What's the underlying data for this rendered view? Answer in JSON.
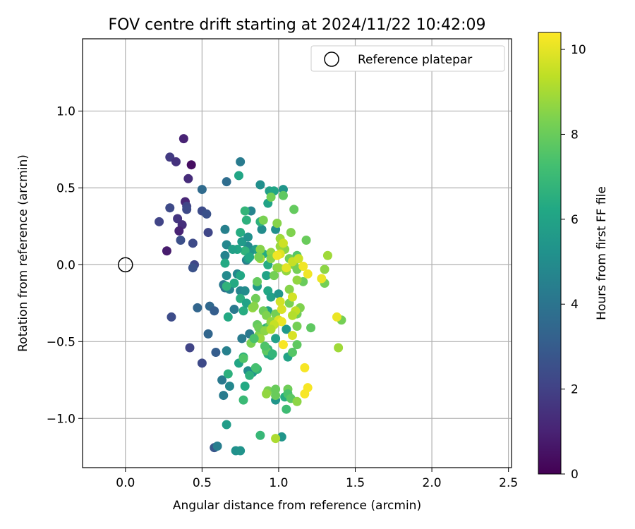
{
  "chart_data": {
    "type": "scatter",
    "title": "FOV centre drift starting at 2024/11/22 10:42:09",
    "xlabel": "Angular distance from reference (arcmin)",
    "ylabel": "Rotation from reference (arcmin)",
    "xlim": [
      -0.28,
      2.52
    ],
    "ylim": [
      -1.32,
      1.47
    ],
    "xticks": [
      0.0,
      0.5,
      1.0,
      1.5,
      2.0,
      2.5
    ],
    "xtick_labels": [
      "0.0",
      "0.5",
      "1.0",
      "1.5",
      "2.0",
      "2.5"
    ],
    "yticks": [
      -1.0,
      -0.5,
      0.0,
      0.5,
      1.0
    ],
    "ytick_labels": [
      "−1.0",
      "−0.5",
      "0.0",
      "0.5",
      "1.0"
    ],
    "grid": true,
    "legend": {
      "position": "top-right",
      "entries": [
        "Reference platepar"
      ]
    },
    "reference": {
      "label": "Reference platepar",
      "x": 0.0,
      "y": 0.0
    },
    "colorbar": {
      "label": "Hours from first FF file",
      "min": 0,
      "max": 10.4,
      "ticks": [
        0,
        2,
        4,
        6,
        8,
        10
      ],
      "tick_labels": [
        "0",
        "2",
        "4",
        "6",
        "8",
        "10"
      ],
      "colormap": "viridis"
    },
    "series": [
      {
        "fields": [
          "x",
          "y",
          "hours"
        ],
        "points": [
          [
            0.38,
            0.82,
            1.0
          ],
          [
            0.29,
            0.7,
            1.8
          ],
          [
            0.33,
            0.67,
            1.5
          ],
          [
            0.43,
            0.65,
            0.4
          ],
          [
            0.41,
            0.56,
            1.3
          ],
          [
            0.39,
            0.41,
            1.1
          ],
          [
            0.4,
            0.38,
            2.1
          ],
          [
            0.29,
            0.37,
            2.3
          ],
          [
            0.4,
            0.36,
            2.3
          ],
          [
            0.5,
            0.35,
            2.4
          ],
          [
            0.53,
            0.33,
            2.6
          ],
          [
            0.34,
            0.3,
            1.6
          ],
          [
            0.22,
            0.28,
            2.1
          ],
          [
            0.37,
            0.26,
            1.4
          ],
          [
            0.35,
            0.22,
            1.0
          ],
          [
            0.54,
            0.21,
            2.2
          ],
          [
            0.36,
            0.16,
            2.5
          ],
          [
            0.44,
            0.14,
            2.3
          ],
          [
            0.27,
            0.09,
            0.8
          ],
          [
            0.45,
            0.0,
            2.2
          ],
          [
            0.44,
            -0.02,
            2.6
          ],
          [
            0.3,
            -0.34,
            2.4
          ],
          [
            0.42,
            -0.54,
            2.1
          ],
          [
            0.5,
            -0.64,
            2.3
          ],
          [
            0.58,
            -1.19,
            2.8
          ],
          [
            0.59,
            -0.57,
            3.1
          ],
          [
            0.54,
            -0.45,
            3.4
          ],
          [
            0.47,
            -0.28,
            3.4
          ],
          [
            0.55,
            -0.27,
            3.5
          ],
          [
            0.58,
            -0.3,
            3.1
          ],
          [
            0.5,
            0.49,
            3.6
          ],
          [
            0.66,
            0.54,
            3.7
          ],
          [
            0.75,
            0.67,
            4.3
          ],
          [
            0.65,
            0.23,
            4.5
          ],
          [
            0.66,
            0.13,
            4.8
          ],
          [
            0.65,
            0.06,
            4.6
          ],
          [
            0.66,
            -0.07,
            4.9
          ],
          [
            0.64,
            -0.13,
            4.2
          ],
          [
            0.65,
            -0.15,
            3.9
          ],
          [
            0.68,
            -0.16,
            4.6
          ],
          [
            0.71,
            -0.29,
            4.2
          ],
          [
            0.66,
            -0.56,
            4.5
          ],
          [
            0.63,
            -0.75,
            4.2
          ],
          [
            0.68,
            -0.79,
            4.8
          ],
          [
            0.64,
            -0.85,
            4.3
          ],
          [
            0.6,
            -1.18,
            4.4
          ],
          [
            0.73,
            -0.06,
            4.8
          ],
          [
            0.75,
            -0.17,
            4.7
          ],
          [
            0.76,
            -0.48,
            4.3
          ],
          [
            0.81,
            -0.45,
            4.2
          ],
          [
            0.82,
            0.35,
            4.7
          ],
          [
            0.79,
            0.03,
            4.5
          ],
          [
            0.78,
            -0.17,
            5.0
          ],
          [
            0.8,
            0.12,
            4.9
          ],
          [
            0.86,
            -0.14,
            5.6
          ],
          [
            0.83,
            -0.7,
            5.3
          ],
          [
            0.8,
            -0.69,
            5.0
          ],
          [
            0.72,
            -1.21,
            5.2
          ],
          [
            0.75,
            -1.21,
            5.3
          ],
          [
            0.66,
            -1.04,
            5.7
          ],
          [
            0.74,
            0.58,
            6.1
          ],
          [
            0.88,
            0.52,
            5.1
          ],
          [
            0.94,
            0.48,
            5.9
          ],
          [
            0.97,
            0.48,
            6.1
          ],
          [
            1.03,
            0.49,
            5.4
          ],
          [
            0.93,
            0.4,
            6.0
          ],
          [
            0.98,
            0.23,
            5.1
          ],
          [
            0.89,
            0.23,
            5.0
          ],
          [
            0.76,
            0.15,
            5.6
          ],
          [
            0.8,
            0.18,
            5.2
          ],
          [
            0.85,
            0.1,
            5.8
          ],
          [
            0.81,
            0.08,
            5.4
          ],
          [
            0.8,
            0.04,
            5.7
          ],
          [
            0.78,
            0.35,
            6.8
          ],
          [
            0.79,
            0.29,
            6.6
          ],
          [
            0.75,
            0.21,
            6.4
          ],
          [
            0.78,
            0.09,
            6.7
          ],
          [
            0.81,
            0.05,
            6.2
          ],
          [
            0.73,
            0.1,
            6.1
          ],
          [
            0.7,
            0.1,
            5.9
          ],
          [
            0.65,
            0.01,
            6.3
          ],
          [
            0.75,
            -0.07,
            6.2
          ],
          [
            0.71,
            -0.12,
            6.3
          ],
          [
            0.66,
            -0.14,
            6.7
          ],
          [
            0.75,
            -0.22,
            6.5
          ],
          [
            0.77,
            -0.3,
            6.4
          ],
          [
            0.79,
            -0.25,
            6.0
          ],
          [
            0.67,
            -0.34,
            6.3
          ],
          [
            0.77,
            -0.6,
            6.7
          ],
          [
            0.74,
            -0.64,
            6.1
          ],
          [
            0.67,
            -0.71,
            6.6
          ],
          [
            0.78,
            -0.79,
            6.3
          ],
          [
            0.81,
            -0.72,
            6.6
          ],
          [
            0.86,
            -0.68,
            6.7
          ],
          [
            0.77,
            -0.88,
            7.0
          ],
          [
            0.88,
            -1.11,
            6.9
          ],
          [
            0.88,
            0.28,
            6.6
          ],
          [
            0.9,
            0.07,
            6.4
          ],
          [
            0.93,
            0.0,
            6.4
          ],
          [
            0.92,
            -0.07,
            6.0
          ],
          [
            0.93,
            -0.17,
            6.2
          ],
          [
            0.95,
            -0.21,
            5.9
          ],
          [
            0.93,
            -0.3,
            5.9
          ],
          [
            0.92,
            -0.41,
            6.5
          ],
          [
            0.93,
            -0.55,
            6.8
          ],
          [
            0.93,
            -0.58,
            6.4
          ],
          [
            0.95,
            -0.59,
            6.3
          ],
          [
            0.98,
            -0.48,
            5.9
          ],
          [
            0.98,
            -0.88,
            5.4
          ],
          [
            1.02,
            -1.12,
            5.4
          ],
          [
            1.0,
            -0.19,
            5.4
          ],
          [
            1.05,
            -0.42,
            5.5
          ],
          [
            1.06,
            -0.6,
            6.0
          ],
          [
            1.04,
            -0.86,
            6.4
          ],
          [
            1.05,
            -0.94,
            7.1
          ],
          [
            1.03,
            0.45,
            7.8
          ],
          [
            0.95,
            0.44,
            8.2
          ],
          [
            1.1,
            0.36,
            7.9
          ],
          [
            0.9,
            0.29,
            8.3
          ],
          [
            0.99,
            0.27,
            8.5
          ],
          [
            1.08,
            0.21,
            8.4
          ],
          [
            1.18,
            0.16,
            8.0
          ],
          [
            1.01,
            0.17,
            8.9
          ],
          [
            1.04,
            0.1,
            8.6
          ],
          [
            0.95,
            0.08,
            8.7
          ],
          [
            0.88,
            0.1,
            8.5
          ],
          [
            1.12,
            0.06,
            7.6
          ],
          [
            1.07,
            0.04,
            8.1
          ],
          [
            1.1,
            0.0,
            8.4
          ],
          [
            1.12,
            -0.03,
            8.2
          ],
          [
            1.05,
            -0.04,
            8.7
          ],
          [
            0.99,
            -0.02,
            8.6
          ],
          [
            1.32,
            0.06,
            8.9
          ],
          [
            1.3,
            -0.03,
            8.6
          ],
          [
            1.3,
            -0.12,
            8.2
          ],
          [
            1.16,
            -0.11,
            8.0
          ],
          [
            1.12,
            -0.1,
            8.7
          ],
          [
            1.07,
            -0.16,
            8.5
          ],
          [
            1.07,
            -0.25,
            8.3
          ],
          [
            1.12,
            -0.32,
            8.1
          ],
          [
            1.14,
            -0.28,
            8.4
          ],
          [
            1.12,
            -0.4,
            8.2
          ],
          [
            1.21,
            -0.41,
            7.8
          ],
          [
            1.41,
            -0.36,
            8.2
          ],
          [
            1.39,
            -0.54,
            8.9
          ],
          [
            1.12,
            -0.52,
            7.8
          ],
          [
            1.09,
            -0.57,
            7.6
          ],
          [
            1.06,
            -0.81,
            8.1
          ],
          [
            1.06,
            -0.84,
            7.4
          ],
          [
            1.08,
            -0.87,
            7.7
          ],
          [
            1.12,
            -0.89,
            8.6
          ],
          [
            0.98,
            -1.13,
            9.1
          ],
          [
            0.86,
            -0.11,
            7.9
          ],
          [
            0.85,
            -0.22,
            8.1
          ],
          [
            0.83,
            -0.28,
            8.7
          ],
          [
            0.9,
            -0.3,
            8.1
          ],
          [
            0.92,
            -0.33,
            8.4
          ],
          [
            0.98,
            -0.32,
            8.2
          ],
          [
            0.96,
            -0.37,
            8.6
          ],
          [
            0.94,
            -0.4,
            7.7
          ],
          [
            0.9,
            -0.43,
            8.5
          ],
          [
            0.87,
            -0.46,
            8.4
          ],
          [
            0.84,
            -0.48,
            8.6
          ],
          [
            0.82,
            -0.51,
            8.3
          ],
          [
            0.88,
            -0.48,
            8.8
          ],
          [
            0.92,
            -0.56,
            7.8
          ],
          [
            0.93,
            -0.82,
            8.3
          ],
          [
            0.98,
            -0.81,
            8.0
          ],
          [
            0.98,
            -0.85,
            8.0
          ],
          [
            0.92,
            -0.84,
            8.7
          ],
          [
            0.84,
            -0.48,
            7.4
          ],
          [
            0.86,
            -0.39,
            7.9
          ],
          [
            0.87,
            -0.41,
            8.1
          ],
          [
            0.91,
            -0.53,
            7.5
          ],
          [
            0.85,
            -0.67,
            7.3
          ],
          [
            0.77,
            -0.61,
            7.5
          ],
          [
            0.96,
            -0.58,
            6.8
          ],
          [
            0.91,
            -0.43,
            8.6
          ],
          [
            0.95,
            -0.37,
            8.7
          ],
          [
            0.84,
            -0.27,
            8.5
          ],
          [
            1.0,
            -0.02,
            8.7
          ],
          [
            0.97,
            -0.07,
            8.2
          ],
          [
            0.95,
            0.04,
            8.5
          ],
          [
            1.01,
            0.12,
            8.8
          ],
          [
            0.88,
            0.04,
            9.0
          ],
          [
            0.87,
            0.05,
            8.3
          ],
          [
            1.01,
            0.07,
            9.9
          ],
          [
            1.03,
            0.14,
            9.6
          ],
          [
            0.99,
            0.06,
            10.2
          ],
          [
            1.05,
            -0.02,
            10.0
          ],
          [
            1.09,
            0.02,
            9.5
          ],
          [
            1.13,
            0.04,
            9.6
          ],
          [
            1.16,
            -0.01,
            10.2
          ],
          [
            1.19,
            -0.06,
            10.2
          ],
          [
            1.28,
            -0.09,
            10.1
          ],
          [
            1.09,
            -0.21,
            9.7
          ],
          [
            1.01,
            -0.24,
            9.7
          ],
          [
            1.02,
            -0.29,
            9.8
          ],
          [
            1.11,
            -0.3,
            9.4
          ],
          [
            1.09,
            -0.33,
            9.2
          ],
          [
            1.0,
            -0.36,
            9.8
          ],
          [
            1.02,
            -0.37,
            10.1
          ],
          [
            0.97,
            -0.39,
            9.5
          ],
          [
            0.95,
            -0.42,
            9.2
          ],
          [
            1.38,
            -0.34,
            10.1
          ],
          [
            1.09,
            -0.46,
            9.8
          ],
          [
            1.03,
            -0.52,
            10.3
          ],
          [
            1.17,
            -0.67,
            10.3
          ],
          [
            1.19,
            -0.8,
            10.3
          ],
          [
            1.17,
            -0.84,
            10.3
          ]
        ]
      }
    ]
  }
}
